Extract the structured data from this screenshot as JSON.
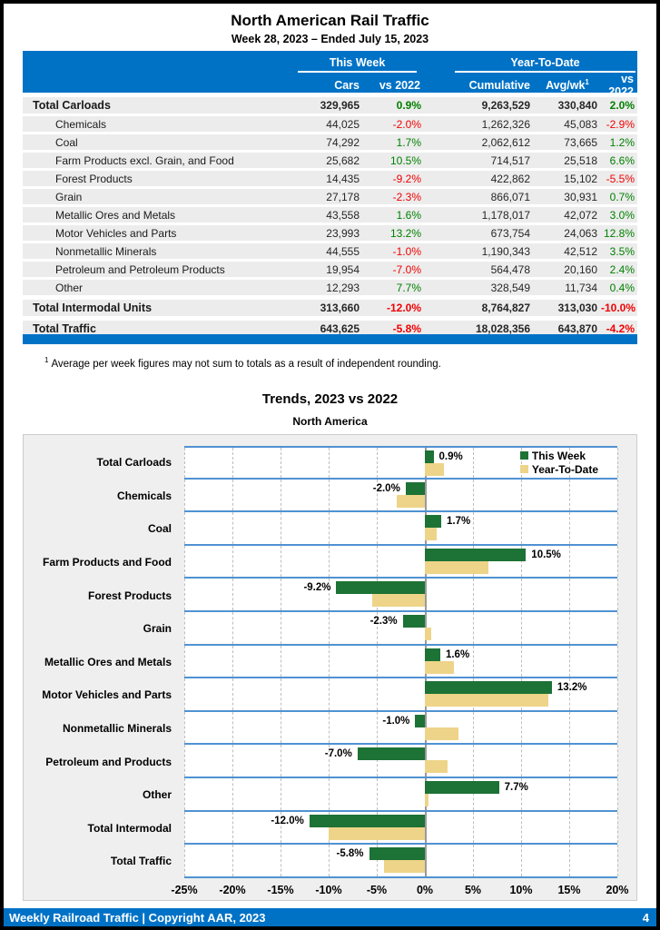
{
  "page": {
    "title": "North American Rail Traffic",
    "subtitle": "Week 28, 2023 – Ended July 15, 2023",
    "footnote_marker": "1",
    "footnote_text": "Average per week figures may not sum to totals as a result of independent rounding.",
    "footer": {
      "left": "Weekly Railroad Traffic | Copyright AAR, 2023",
      "page_number": "4"
    }
  },
  "table": {
    "group_this_week": "This Week",
    "group_ytd": "Year-To-Date",
    "columns": {
      "cars": "Cars",
      "vs_this": "vs 2022",
      "cumulative": "Cumulative",
      "avgwk": "Avg/wk",
      "avgwk_sup": "1",
      "vs_ytd": "vs 2022"
    },
    "rows": [
      {
        "label": "Total Carloads",
        "total": true,
        "cars": "329,965",
        "cars_vs": "0.9%",
        "cumulative": "9,263,529",
        "avgwk": "330,840",
        "ytd_vs": "2.0%"
      },
      {
        "label": "Chemicals",
        "total": false,
        "cars": "44,025",
        "cars_vs": "-2.0%",
        "cumulative": "1,262,326",
        "avgwk": "45,083",
        "ytd_vs": "-2.9%"
      },
      {
        "label": "Coal",
        "total": false,
        "cars": "74,292",
        "cars_vs": "1.7%",
        "cumulative": "2,062,612",
        "avgwk": "73,665",
        "ytd_vs": "1.2%"
      },
      {
        "label": "Farm Products excl. Grain, and Food",
        "total": false,
        "cars": "25,682",
        "cars_vs": "10.5%",
        "cumulative": "714,517",
        "avgwk": "25,518",
        "ytd_vs": "6.6%"
      },
      {
        "label": "Forest Products",
        "total": false,
        "cars": "14,435",
        "cars_vs": "-9.2%",
        "cumulative": "422,862",
        "avgwk": "15,102",
        "ytd_vs": "-5.5%"
      },
      {
        "label": "Grain",
        "total": false,
        "cars": "27,178",
        "cars_vs": "-2.3%",
        "cumulative": "866,071",
        "avgwk": "30,931",
        "ytd_vs": "0.7%"
      },
      {
        "label": "Metallic Ores and Metals",
        "total": false,
        "cars": "43,558",
        "cars_vs": "1.6%",
        "cumulative": "1,178,017",
        "avgwk": "42,072",
        "ytd_vs": "3.0%"
      },
      {
        "label": "Motor Vehicles and Parts",
        "total": false,
        "cars": "23,993",
        "cars_vs": "13.2%",
        "cumulative": "673,754",
        "avgwk": "24,063",
        "ytd_vs": "12.8%"
      },
      {
        "label": "Nonmetallic Minerals",
        "total": false,
        "cars": "44,555",
        "cars_vs": "-1.0%",
        "cumulative": "1,190,343",
        "avgwk": "42,512",
        "ytd_vs": "3.5%"
      },
      {
        "label": "Petroleum and Petroleum Products",
        "total": false,
        "cars": "19,954",
        "cars_vs": "-7.0%",
        "cumulative": "564,478",
        "avgwk": "20,160",
        "ytd_vs": "2.4%"
      },
      {
        "label": "Other",
        "total": false,
        "cars": "12,293",
        "cars_vs": "7.7%",
        "cumulative": "328,549",
        "avgwk": "11,734",
        "ytd_vs": "0.4%"
      },
      {
        "label": "Total Intermodal Units",
        "total": true,
        "cars": "313,660",
        "cars_vs": "-12.0%",
        "cumulative": "8,764,827",
        "avgwk": "313,030",
        "ytd_vs": "-10.0%"
      },
      {
        "label": "Total Traffic",
        "total": true,
        "cars": "643,625",
        "cars_vs": "-5.8%",
        "cumulative": "18,028,356",
        "avgwk": "643,870",
        "ytd_vs": "-4.2%"
      }
    ]
  },
  "chart_data": {
    "type": "bar",
    "orientation": "horizontal",
    "title": "Trends, 2023 vs 2022",
    "subtitle": "North America",
    "categories": [
      "Total Carloads",
      "Chemicals",
      "Coal",
      "Farm Products and Food",
      "Forest Products",
      "Grain",
      "Metallic Ores and Metals",
      "Motor Vehicles and Parts",
      "Nonmetallic Minerals",
      "Petroleum and Products",
      "Other",
      "Total Intermodal",
      "Total Traffic"
    ],
    "series": [
      {
        "name": "This Week",
        "color": "#1d7235",
        "values": [
          0.9,
          -2.0,
          1.7,
          10.5,
          -9.2,
          -2.3,
          1.6,
          13.2,
          -1.0,
          -7.0,
          7.7,
          -12.0,
          -5.8
        ]
      },
      {
        "name": "Year-To-Date",
        "color": "#eed489",
        "values": [
          2.0,
          -2.9,
          1.2,
          6.6,
          -5.5,
          0.7,
          3.0,
          12.8,
          3.5,
          2.4,
          0.4,
          -10.0,
          -4.2
        ]
      }
    ],
    "data_labels_series": "This Week",
    "xlim": [
      -25,
      20
    ],
    "x_ticks": [
      -25,
      -20,
      -15,
      -10,
      -5,
      0,
      5,
      10,
      15,
      20
    ],
    "grid": true,
    "legend_position": "top-right"
  },
  "colors": {
    "header_blue": "#0072C6",
    "row_line_blue": "#4f92d2",
    "positive_green": "#008000",
    "negative_red": "#f20000",
    "bar_green": "#1d7235",
    "bar_tan": "#eed489"
  }
}
